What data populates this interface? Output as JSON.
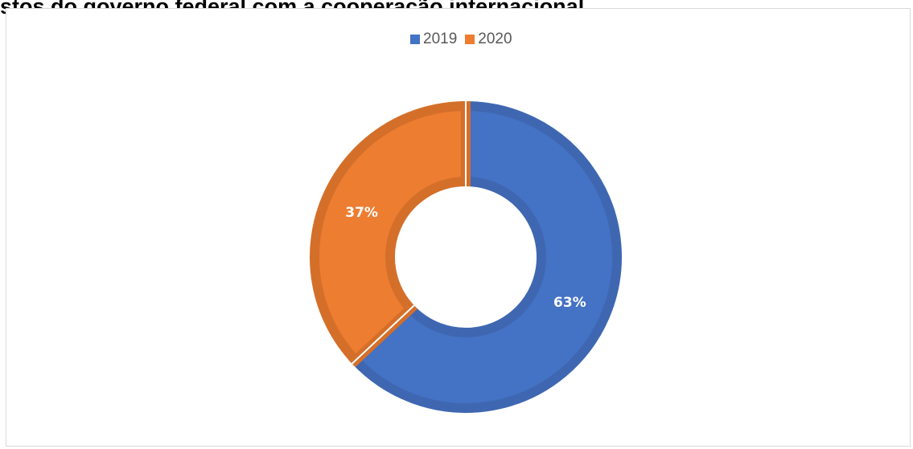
{
  "title": "stos do governo federal com a cooperação internacional",
  "colors": {
    "2019": "#4472c4",
    "2020": "#ed7d31",
    "border2019": "#3f67b1",
    "border2020": "#d46f2a"
  },
  "chart_data": {
    "type": "pie",
    "variant": "donut",
    "title": "stos do governo federal com a cooperação internacional",
    "categories": [
      "2019",
      "2020"
    ],
    "values": [
      63,
      37
    ],
    "data_labels": [
      "63%",
      "37%"
    ],
    "legend": {
      "position": "top",
      "entries": [
        "2019",
        "2020"
      ]
    }
  }
}
